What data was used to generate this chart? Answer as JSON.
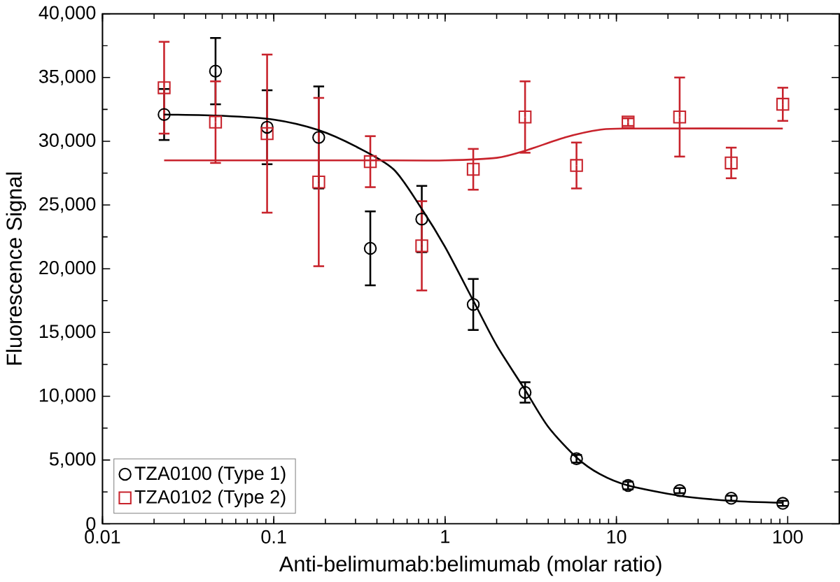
{
  "chart_data": {
    "type": "scatter",
    "xlabel": "Anti-belimumab:belimumab (molar ratio)",
    "ylabel": "Fluorescence Signal",
    "log": "x",
    "xlim": [
      0.01,
      200
    ],
    "ylim": [
      0,
      40000
    ],
    "xticks": [
      0.01,
      0.1,
      1,
      10,
      100
    ],
    "yticks": [
      0,
      {
        "value": 5000,
        "label": "5,000"
      },
      {
        "value": 10000,
        "label": "10,000"
      },
      {
        "value": 15000,
        "label": "15,000"
      },
      {
        "value": 20000,
        "label": "20,000"
      },
      {
        "value": 25000,
        "label": "25,000"
      },
      {
        "value": 30000,
        "label": "30,000"
      },
      {
        "value": 35000,
        "label": "35,000"
      },
      {
        "value": 40000,
        "label": "40,000"
      }
    ],
    "grid": false,
    "legend": "bottom left",
    "series": [
      {
        "name": "TZA0100 (Type 1)",
        "color": "#000000",
        "marker": "circle",
        "x": [
          0.0229,
          0.0457,
          0.0914,
          0.183,
          0.366,
          0.731,
          1.46,
          2.93,
          5.85,
          11.7,
          23.4,
          46.8,
          93.6
        ],
        "values": [
          32100,
          35500,
          31100,
          30300,
          21600,
          23900,
          17200,
          10300,
          5100,
          3000,
          2600,
          2000,
          1600
        ],
        "errors": [
          2000,
          2600,
          2900,
          4000,
          2900,
          2600,
          2000,
          800,
          300,
          300,
          200,
          200,
          200
        ]
      },
      {
        "name": "TZA0102 (Type 2)",
        "color": "#c8232c",
        "marker": "square",
        "x": [
          0.0229,
          0.0457,
          0.0914,
          0.183,
          0.366,
          0.731,
          1.46,
          2.93,
          5.85,
          11.7,
          23.4,
          46.8,
          93.6
        ],
        "values": [
          34200,
          31500,
          30600,
          26800,
          28400,
          21800,
          27800,
          31900,
          28100,
          31500,
          31900,
          28300,
          32900
        ],
        "errors": [
          3600,
          3200,
          6200,
          6600,
          2000,
          3500,
          1600,
          2800,
          1800,
          300,
          3100,
          1200,
          1300
        ]
      },
      {
        "type": "line",
        "color": "#000000",
        "x": [
          0.0229,
          0.05,
          0.1,
          0.18,
          0.3,
          0.5,
          0.73,
          1,
          1.46,
          2,
          2.93,
          4,
          5.85,
          8,
          11.7,
          23.4,
          46.8,
          93.6
        ],
        "values": [
          32100,
          32000,
          31700,
          30900,
          29600,
          27800,
          24700,
          21700,
          17500,
          14000,
          10500,
          7600,
          5200,
          3900,
          3000,
          2200,
          1800,
          1650
        ]
      },
      {
        "type": "line",
        "color": "#c8232c",
        "x": [
          0.0229,
          0.5,
          1,
          2,
          3,
          5,
          8,
          12,
          93.6
        ],
        "values": [
          28500,
          28500,
          28500,
          28700,
          29300,
          30300,
          30900,
          31000,
          31000
        ]
      }
    ]
  }
}
